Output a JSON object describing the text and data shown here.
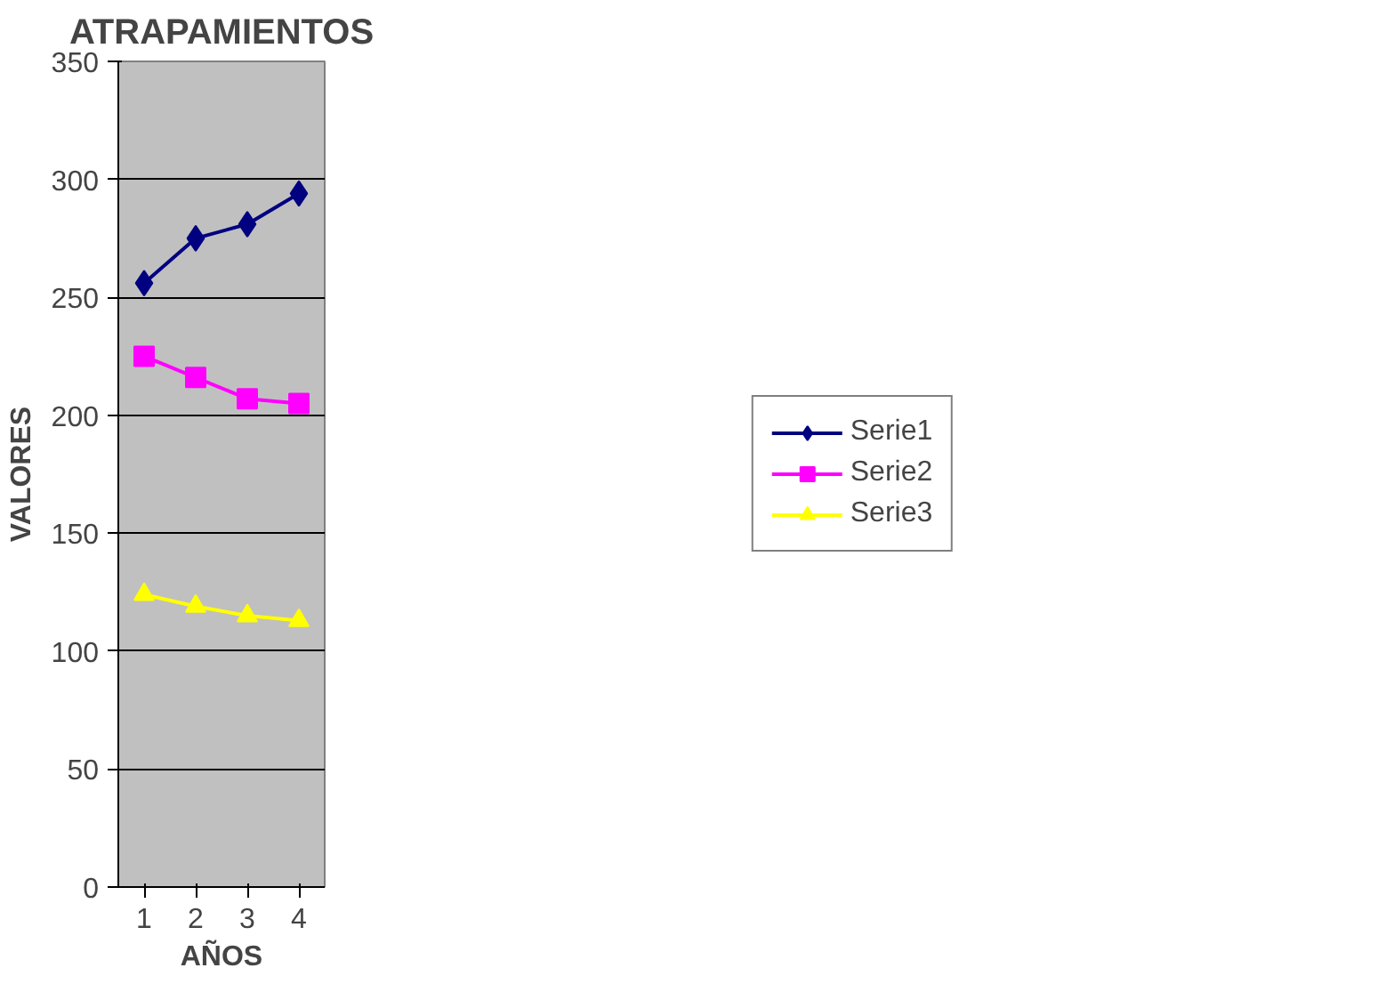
{
  "chart_data": {
    "type": "line",
    "title": "ATRAPAMIENTOS",
    "xlabel": "AÑOS",
    "ylabel": "VALORES",
    "categories": [
      "1",
      "2",
      "3",
      "4"
    ],
    "series": [
      {
        "name": "Serie1",
        "color": "#000080",
        "marker": "diamond",
        "values": [
          256,
          275,
          281,
          294
        ]
      },
      {
        "name": "Serie2",
        "color": "#ff00ff",
        "marker": "square",
        "values": [
          225,
          216,
          207,
          205
        ]
      },
      {
        "name": "Serie3",
        "color": "#ffff00",
        "marker": "triangle",
        "values": [
          124,
          119,
          115,
          113
        ]
      }
    ],
    "ylim": [
      0,
      350
    ],
    "yticks": [
      0,
      50,
      100,
      150,
      200,
      250,
      300,
      350
    ],
    "grid": "y",
    "legend": "right",
    "line_style": "solid"
  }
}
